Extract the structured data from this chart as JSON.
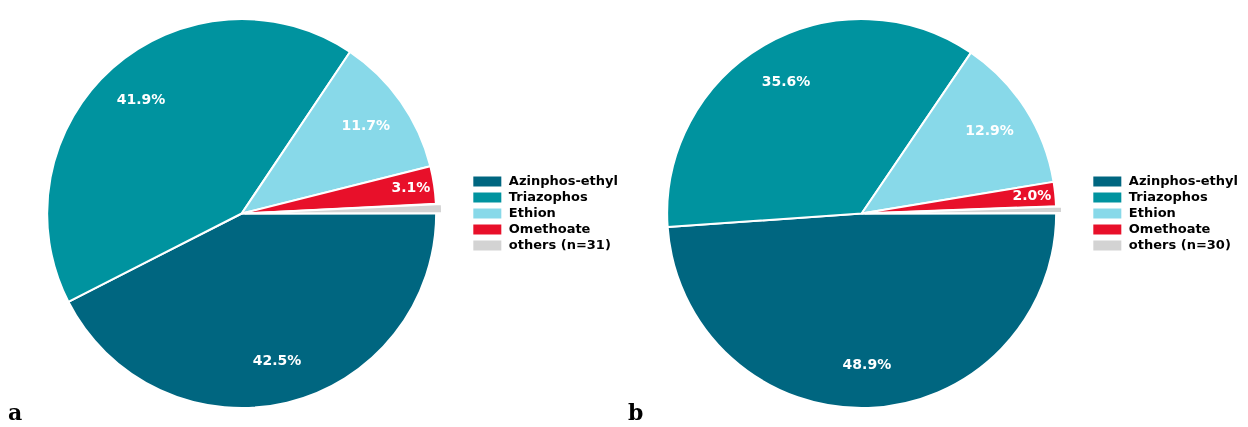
{
  "chart_data": [
    {
      "type": "pie",
      "annotations": [
        "a"
      ],
      "categories": [
        "Azinphos-ethyl",
        "Triazophos",
        "Ethion",
        "Omethoate",
        "others (n=31)"
      ],
      "values": [
        42.5,
        41.9,
        11.7,
        3.1,
        0.8
      ],
      "value_labels": [
        "42.5%",
        "41.9%",
        "11.7%",
        "3.1%",
        null
      ],
      "colors": [
        "#006680",
        "#00939f",
        "#88d9e9",
        "#e8102a",
        "#d3d3d3"
      ],
      "legend": "right"
    },
    {
      "type": "pie",
      "annotations": [
        "b"
      ],
      "categories": [
        "Azinphos-ethyl",
        "Triazophos",
        "Ethion",
        "Omethoate",
        "others (n=30)"
      ],
      "values": [
        48.9,
        35.6,
        12.9,
        2.0,
        0.6
      ],
      "value_labels": [
        "48.9%",
        "35.6%",
        "12.9%",
        "2.0%",
        null
      ],
      "colors": [
        "#006680",
        "#00939f",
        "#88d9e9",
        "#e8102a",
        "#d3d3d3"
      ],
      "legend": "right"
    }
  ]
}
